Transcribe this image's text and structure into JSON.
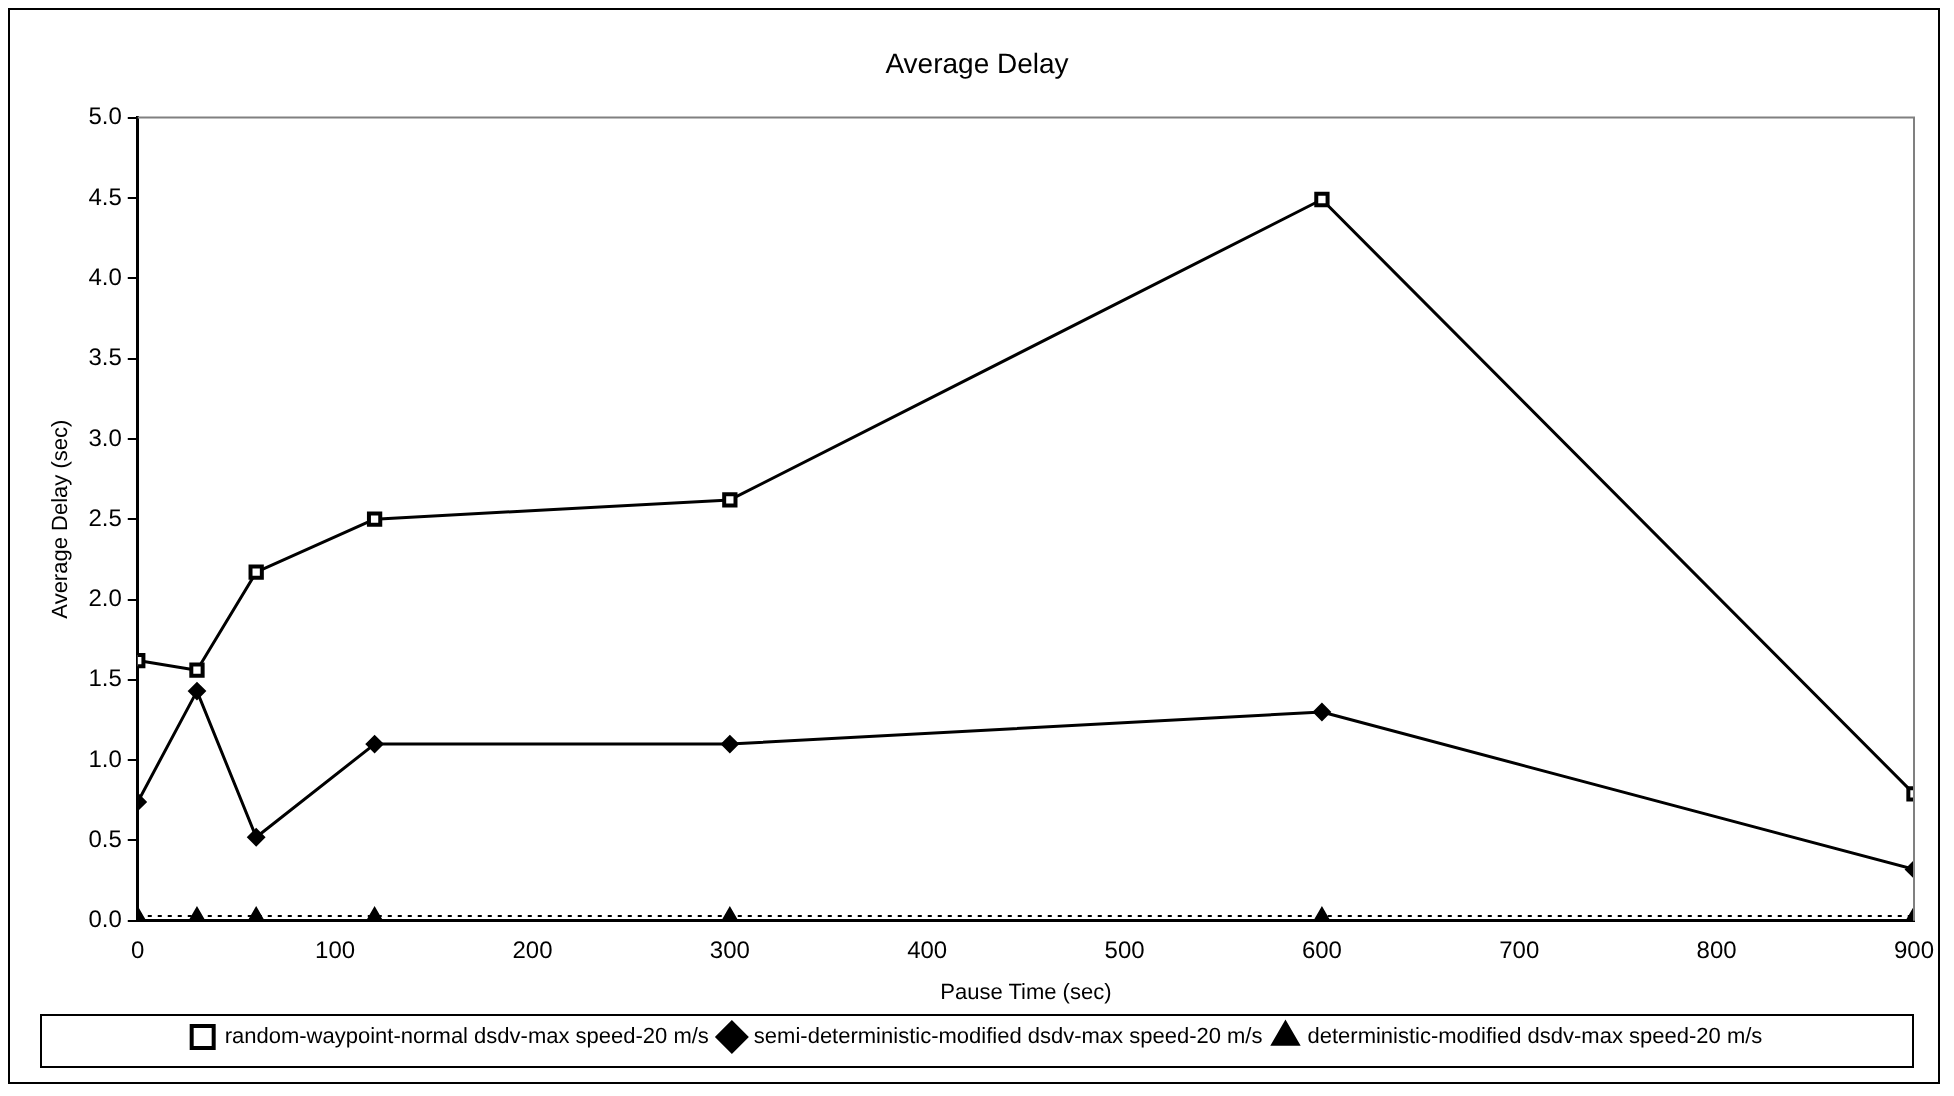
{
  "chart_data": {
    "type": "line",
    "title": "Average Delay",
    "xlabel": "Pause Time (sec)",
    "ylabel": "Average Delay (sec)",
    "x": [
      0,
      30,
      60,
      120,
      300,
      600,
      900
    ],
    "xlim": [
      0,
      900
    ],
    "xticks": [
      0,
      100,
      200,
      300,
      400,
      500,
      600,
      700,
      800,
      900
    ],
    "ylim": [
      0,
      5
    ],
    "yticks": [
      {
        "value": 0,
        "label": "0.0"
      },
      0.5,
      {
        "value": 1,
        "label": "1.0"
      },
      1.5,
      {
        "value": 2,
        "label": "2.0"
      },
      2.5,
      {
        "value": 3,
        "label": "3.0"
      },
      3.5,
      {
        "value": 4,
        "label": "4.0"
      },
      4.5,
      {
        "value": 5,
        "label": "5.0"
      }
    ],
    "grid": false,
    "legend": "bottom",
    "series": [
      {
        "name": "random-waypoint-normal dsdv-max speed-20 m/s",
        "color": "#000000",
        "marker": "square",
        "line_style": "solid",
        "values": [
          1.62,
          1.56,
          2.17,
          2.5,
          2.62,
          4.49,
          0.79
        ]
      },
      {
        "name": "semi-deterministic-modified dsdv-max speed-20 m/s",
        "color": "#000000",
        "marker": "diamond",
        "line_style": "solid",
        "values": [
          0.74,
          1.43,
          0.52,
          1.1,
          1.1,
          1.3,
          0.32
        ]
      },
      {
        "name": "deterministic-modified dsdv-max speed-20 m/s",
        "color": "#000000",
        "marker": "triangle",
        "line_style": "dotted",
        "values": [
          0.03,
          0.03,
          0.03,
          0.03,
          0.03,
          0.03,
          0.03
        ]
      }
    ]
  }
}
